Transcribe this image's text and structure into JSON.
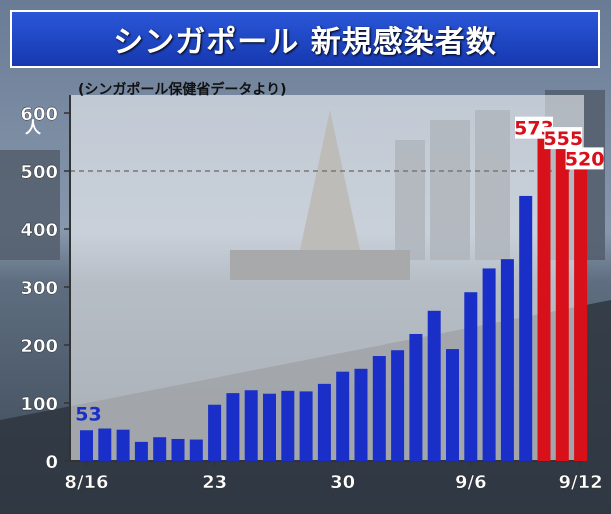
{
  "title": "シンガポール 新規感染者数",
  "colors": {
    "accent_blue": "#1a2fc8",
    "highlight_red": "#d8101a",
    "title_bg": "#1f47c6"
  },
  "chart_data": {
    "type": "bar",
    "source": "(シンガポール保健省データより)",
    "ylabel": "人",
    "ylim": [
      0,
      600
    ],
    "yticks": [
      "0",
      "100",
      "200",
      "300",
      "400",
      "500",
      "600"
    ],
    "reference_line": 500,
    "x_tick_labels": [
      {
        "index": 0,
        "label": "8/16"
      },
      {
        "index": 7,
        "label": "23"
      },
      {
        "index": 14,
        "label": "30"
      },
      {
        "index": 21,
        "label": "9/6"
      },
      {
        "index": 27,
        "label": "9/12"
      }
    ],
    "values": [
      53,
      56,
      54,
      33,
      41,
      38,
      37,
      97,
      117,
      122,
      116,
      121,
      120,
      133,
      154,
      159,
      181,
      191,
      219,
      259,
      193,
      291,
      332,
      348,
      457,
      573,
      555,
      520
    ],
    "highlight_from_index": 25,
    "data_labels": [
      {
        "index": 0,
        "text": "53",
        "color": "blue"
      },
      {
        "index": 25,
        "text": "573",
        "color": "red"
      },
      {
        "index": 26,
        "text": "555",
        "color": "red"
      },
      {
        "index": 27,
        "text": "520",
        "color": "red"
      }
    ]
  }
}
